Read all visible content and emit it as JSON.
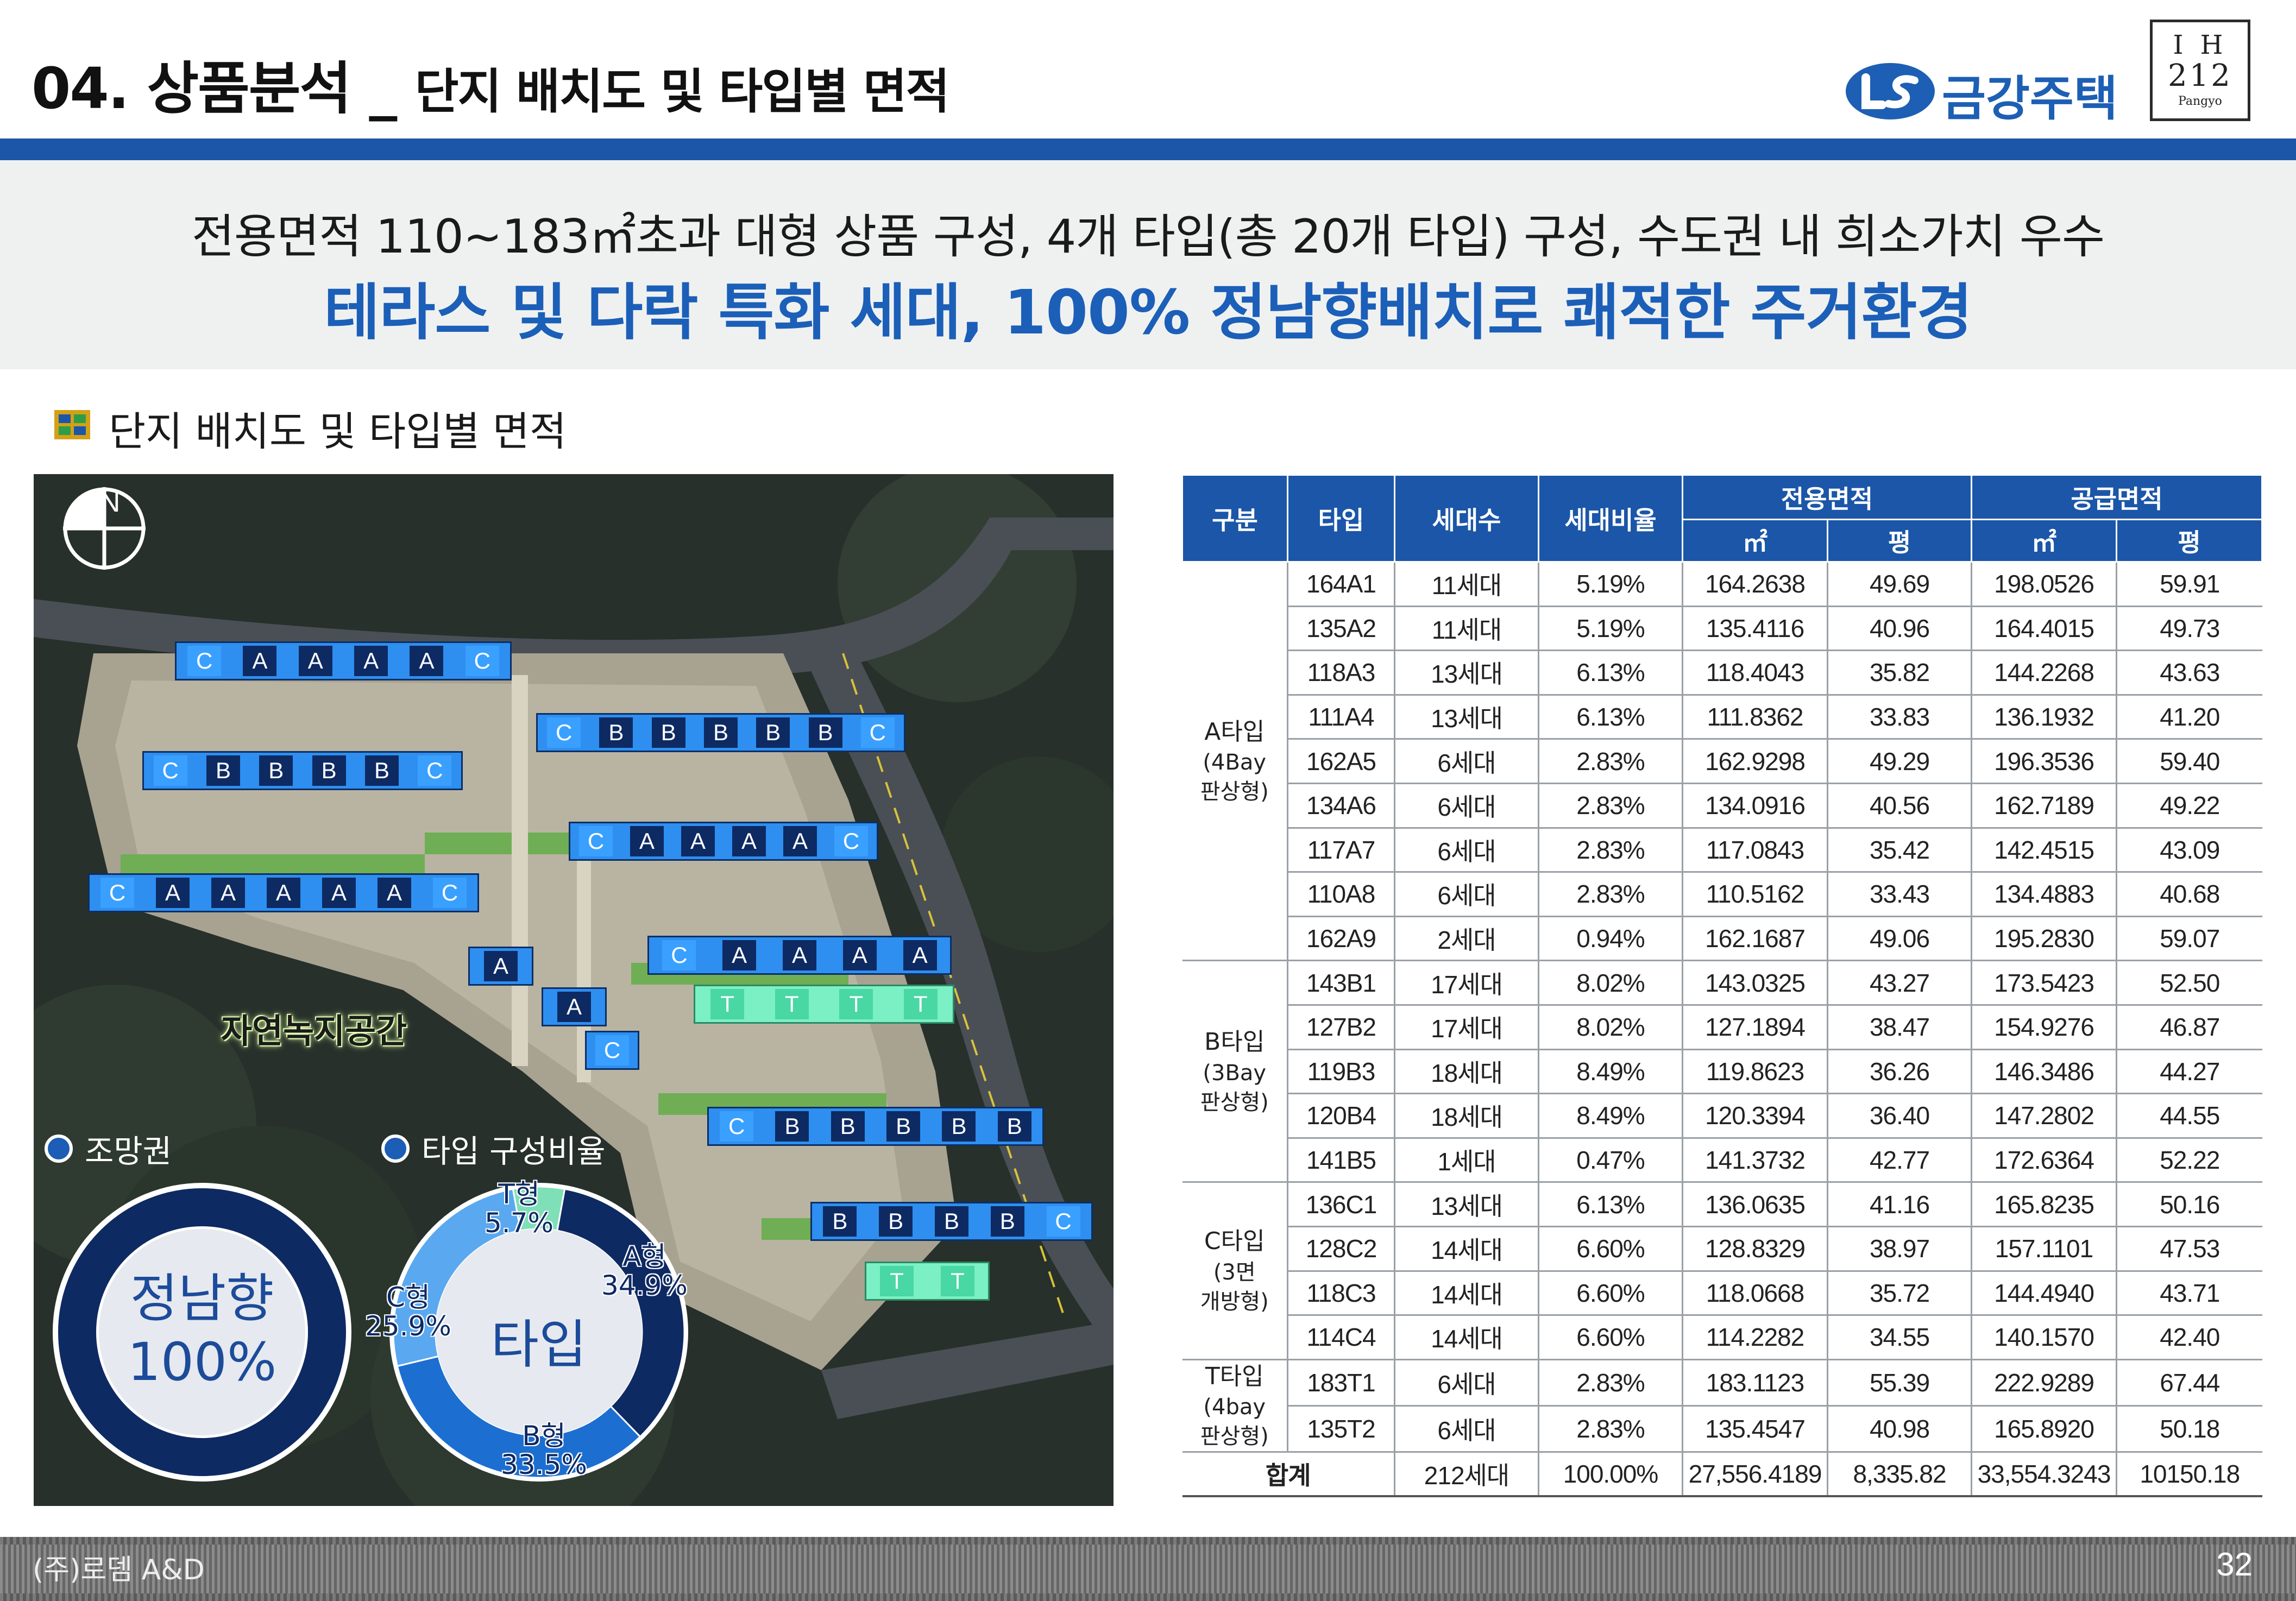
{
  "header": {
    "title_number": "04.",
    "title_main": "상품분석",
    "title_sep": "_",
    "title_sub": "단지 배치도 및 타입별 면적",
    "company": "금강주택",
    "brand": {
      "line1": "I H",
      "line2": "212",
      "line3": "Pangyo"
    }
  },
  "summary": {
    "line1": "전용면적 110~183㎡초과 대형 상품 구성, 4개 타입(총 20개 타입) 구성, 수도권 내 희소가치 우수",
    "line2": "테라스 및 다락 특화 세대, 100% 정남향배치로 쾌적한 주거환경"
  },
  "section": {
    "title": "단지 배치도 및 타입별 면적"
  },
  "site_plan": {
    "compass_n": "N",
    "green_space_label": "자연녹지공간",
    "buildings": [
      [
        "C",
        "A",
        "A",
        "A",
        "A",
        "C"
      ],
      [
        "C",
        "B",
        "B",
        "B",
        "B",
        "B",
        "C"
      ],
      [
        "C",
        "B",
        "B",
        "B",
        "B",
        "C"
      ],
      [
        "C",
        "A",
        "A",
        "A",
        "A",
        "C"
      ],
      [
        "C",
        "A",
        "A",
        "A",
        "A",
        "A",
        "C"
      ],
      [
        "C",
        "A",
        "A",
        "A",
        "A"
      ],
      [
        "A"
      ],
      [
        "A"
      ],
      [
        "C"
      ],
      [
        "T",
        "T",
        "T",
        "T"
      ],
      [
        "C",
        "B",
        "B",
        "B",
        "B",
        "B"
      ],
      [
        "B",
        "B",
        "B",
        "B",
        "C"
      ],
      [
        "T",
        "T"
      ]
    ],
    "view_legend": {
      "title": "조망권",
      "center_line1": "정남향",
      "center_line2": "100%",
      "value": 100
    },
    "type_legend": {
      "title": "타입 구성비율",
      "center": "타입",
      "slices": [
        {
          "name": "A형",
          "value": "34.9%",
          "pct": 34.9,
          "color": "#0e2a63"
        },
        {
          "name": "B형",
          "value": "33.5%",
          "pct": 33.5,
          "color": "#1c6fd1"
        },
        {
          "name": "C형",
          "value": "25.9%",
          "pct": 25.9,
          "color": "#5aa8ef"
        },
        {
          "name": "T형",
          "value": "5.7%",
          "pct": 5.7,
          "color": "#7fe0b8"
        }
      ]
    }
  },
  "table": {
    "headers": {
      "group": "구분",
      "type": "타입",
      "units": "세대수",
      "ratio": "세대비율",
      "exclusive": "전용면적",
      "supply": "공급면적",
      "sqm": "㎡",
      "pyeong": "평"
    },
    "groups": [
      {
        "name": "A타입",
        "sub1": "(4Bay",
        "sub2": "판상형)",
        "rows": [
          [
            "164A1",
            "11세대",
            "5.19%",
            "164.2638",
            "49.69",
            "198.0526",
            "59.91"
          ],
          [
            "135A2",
            "11세대",
            "5.19%",
            "135.4116",
            "40.96",
            "164.4015",
            "49.73"
          ],
          [
            "118A3",
            "13세대",
            "6.13%",
            "118.4043",
            "35.82",
            "144.2268",
            "43.63"
          ],
          [
            "111A4",
            "13세대",
            "6.13%",
            "111.8362",
            "33.83",
            "136.1932",
            "41.20"
          ],
          [
            "162A5",
            "6세대",
            "2.83%",
            "162.9298",
            "49.29",
            "196.3536",
            "59.40"
          ],
          [
            "134A6",
            "6세대",
            "2.83%",
            "134.0916",
            "40.56",
            "162.7189",
            "49.22"
          ],
          [
            "117A7",
            "6세대",
            "2.83%",
            "117.0843",
            "35.42",
            "142.4515",
            "43.09"
          ],
          [
            "110A8",
            "6세대",
            "2.83%",
            "110.5162",
            "33.43",
            "134.4883",
            "40.68"
          ],
          [
            "162A9",
            "2세대",
            "0.94%",
            "162.1687",
            "49.06",
            "195.2830",
            "59.07"
          ]
        ]
      },
      {
        "name": "B타입",
        "sub1": "(3Bay",
        "sub2": "판상형)",
        "rows": [
          [
            "143B1",
            "17세대",
            "8.02%",
            "143.0325",
            "43.27",
            "173.5423",
            "52.50"
          ],
          [
            "127B2",
            "17세대",
            "8.02%",
            "127.1894",
            "38.47",
            "154.9276",
            "46.87"
          ],
          [
            "119B3",
            "18세대",
            "8.49%",
            "119.8623",
            "36.26",
            "146.3486",
            "44.27"
          ],
          [
            "120B4",
            "18세대",
            "8.49%",
            "120.3394",
            "36.40",
            "147.2802",
            "44.55"
          ],
          [
            "141B5",
            "1세대",
            "0.47%",
            "141.3732",
            "42.77",
            "172.6364",
            "52.22"
          ]
        ]
      },
      {
        "name": "C타입",
        "sub1": "(3면",
        "sub2": "개방형)",
        "rows": [
          [
            "136C1",
            "13세대",
            "6.13%",
            "136.0635",
            "41.16",
            "165.8235",
            "50.16"
          ],
          [
            "128C2",
            "14세대",
            "6.60%",
            "128.8329",
            "38.97",
            "157.1101",
            "47.53"
          ],
          [
            "118C3",
            "14세대",
            "6.60%",
            "118.0668",
            "35.72",
            "144.4940",
            "43.71"
          ],
          [
            "114C4",
            "14세대",
            "6.60%",
            "114.2282",
            "34.55",
            "140.1570",
            "42.40"
          ]
        ]
      },
      {
        "name": "T타입",
        "sub1": "(4bay",
        "sub2": "판상형)",
        "rows": [
          [
            "183T1",
            "6세대",
            "2.83%",
            "183.1123",
            "55.39",
            "222.9289",
            "67.44"
          ],
          [
            "135T2",
            "6세대",
            "2.83%",
            "135.4547",
            "40.98",
            "165.8920",
            "50.18"
          ]
        ]
      }
    ],
    "total": {
      "label": "합계",
      "units": "212세대",
      "ratio": "100.00%",
      "exclusive_sqm": "27,556.4189",
      "exclusive_pyeong": "8,335.82",
      "supply_sqm": "33,554.3243",
      "supply_pyeong": "10150.18"
    }
  },
  "footer": {
    "company": "(주)로뎀 A&D",
    "page_number": "32"
  }
}
